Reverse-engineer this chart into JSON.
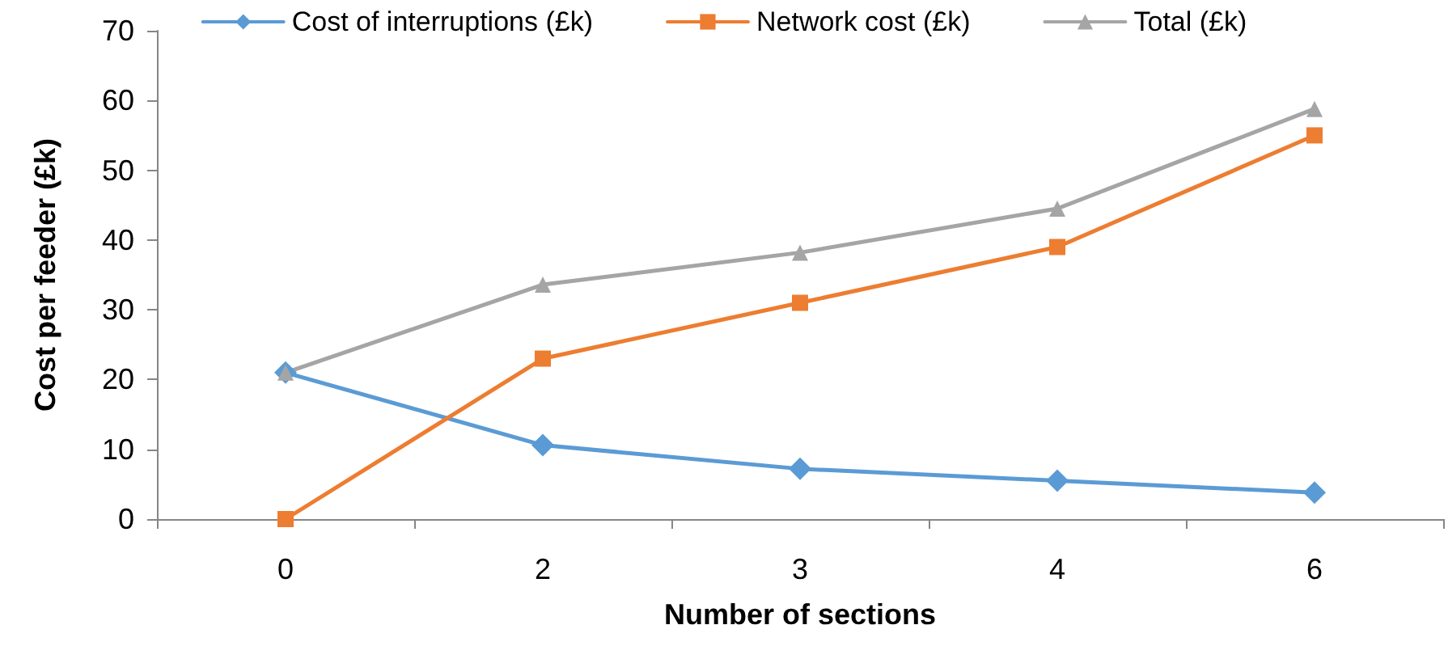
{
  "chart_data": {
    "type": "line",
    "xlabel": "Number of sections",
    "ylabel": "Cost per feeder (£k)",
    "categories": [
      "0",
      "2",
      "3",
      "4",
      "6"
    ],
    "series": [
      {
        "name": "Cost of interruptions (£k)",
        "color": "#5b9bd5",
        "marker": "diamond",
        "values": [
          21,
          10.6,
          7.2,
          5.5,
          3.8
        ]
      },
      {
        "name": "Network cost (£k)",
        "color": "#ed7d31",
        "marker": "square",
        "values": [
          0,
          23,
          31,
          39,
          55
        ]
      },
      {
        "name": "Total (£k)",
        "color": "#a5a5a5",
        "marker": "triangle",
        "values": [
          21,
          33.6,
          38.2,
          44.5,
          58.8
        ]
      }
    ],
    "ylim": [
      0,
      70
    ],
    "yticks": [
      0,
      10,
      20,
      30,
      40,
      50,
      60,
      70
    ],
    "grid": false,
    "legend": "top",
    "line_style": "solid"
  }
}
